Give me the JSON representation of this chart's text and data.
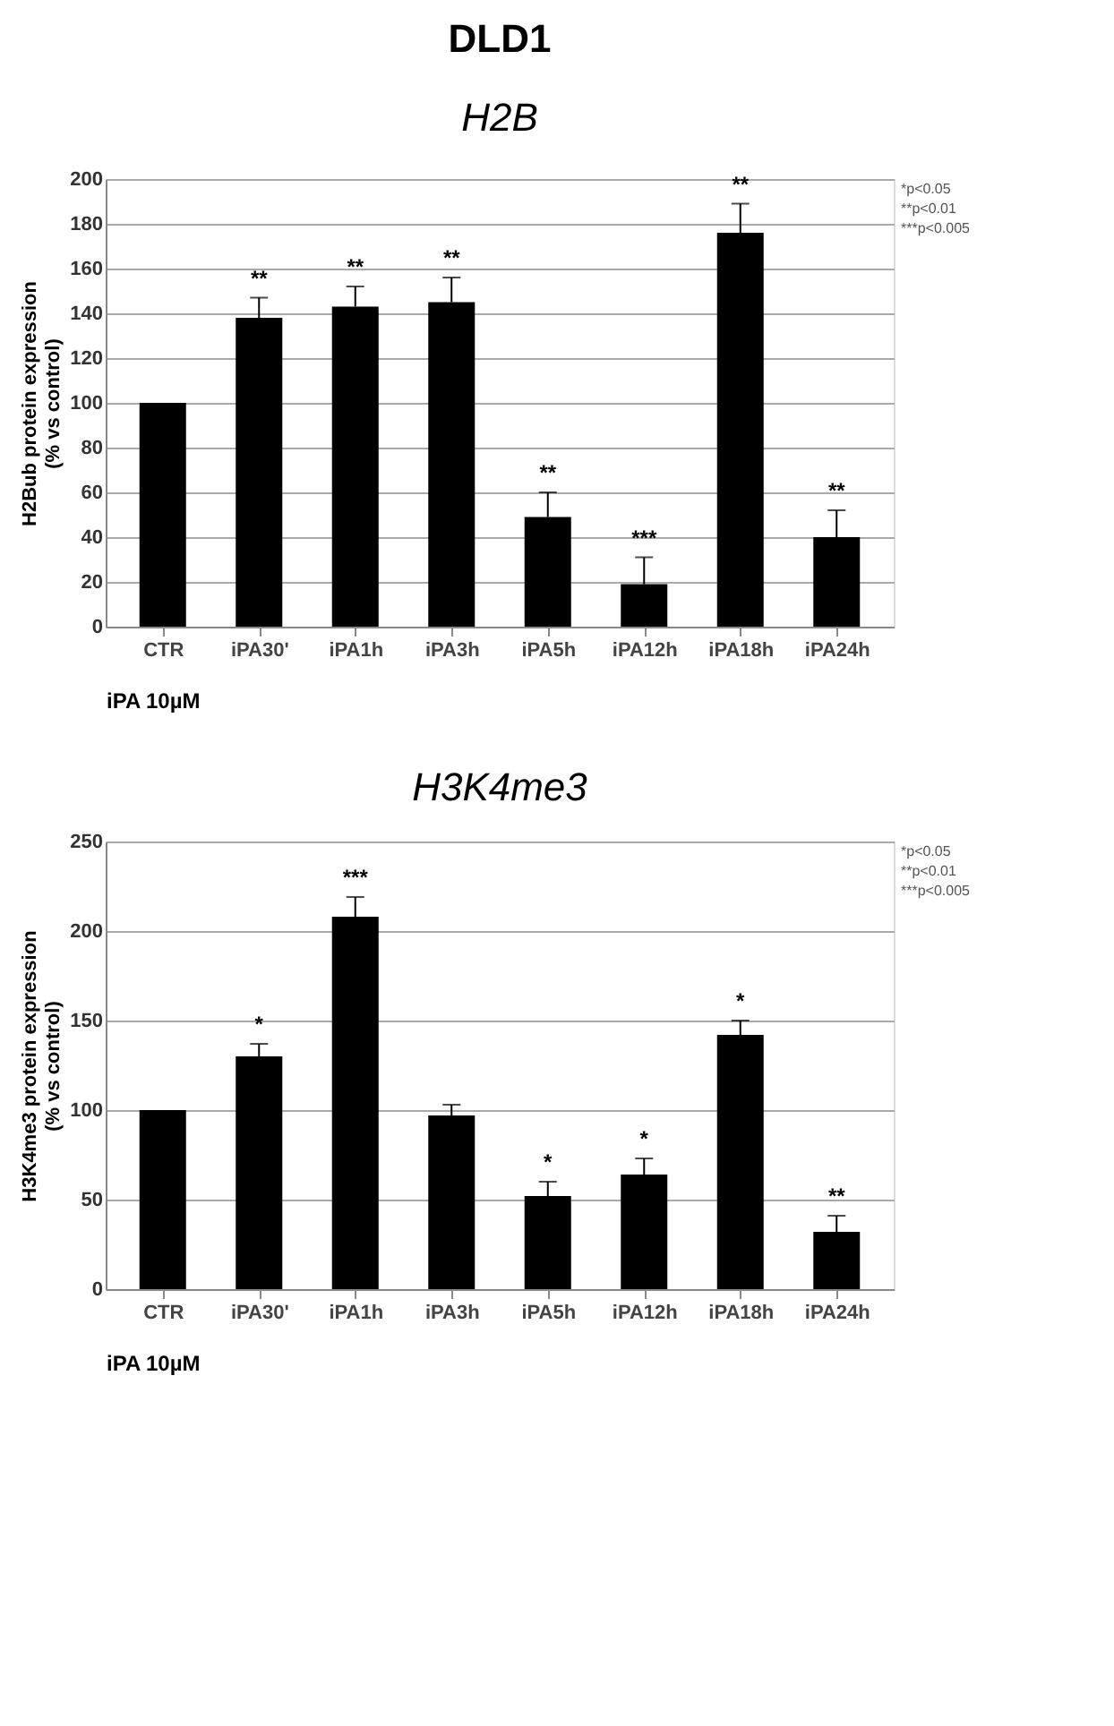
{
  "chart_data": [
    {
      "type": "bar",
      "title": "DLD1",
      "subtitle": "H2B",
      "xlabel": "iPA 10µM",
      "ylabel": "H2Bub protein expression\n(% vs control)",
      "categories": [
        "CTR",
        "iPA30'",
        "iPA1h",
        "iPA3h",
        "iPA5h",
        "iPA12h",
        "iPA18h",
        "iPA24h"
      ],
      "series": [
        {
          "color": "#000000",
          "values": [
            100,
            138,
            143,
            145,
            49,
            19,
            176,
            40
          ],
          "errors": [
            null,
            [
              138,
              147
            ],
            [
              143,
              152
            ],
            [
              145,
              156
            ],
            [
              49,
              60
            ],
            [
              19,
              31
            ],
            [
              176,
              189
            ],
            [
              40,
              52
            ]
          ],
          "value_labels": [
            null,
            "**",
            "**",
            "**",
            "**",
            "***",
            "**",
            "**"
          ]
        }
      ],
      "ylim": [
        0,
        200
      ],
      "yticks": [
        0,
        20,
        40,
        60,
        80,
        100,
        120,
        140,
        160,
        180,
        200
      ],
      "grid": "y",
      "annotations": [
        "*p<0.05",
        "**p<0.01",
        "***p<0.005"
      ]
    },
    {
      "type": "bar",
      "title": "H3K4me3",
      "xlabel": "iPA 10µM",
      "ylabel": "H3K4me3 protein expression\n(% vs control)",
      "categories": [
        "CTR",
        "iPA30'",
        "iPA1h",
        "iPA3h",
        "iPA5h",
        "iPA12h",
        "iPA18h",
        "iPA24h"
      ],
      "series": [
        {
          "color": "#000000",
          "values": [
            100,
            130,
            208,
            97,
            52,
            64,
            142,
            32
          ],
          "errors": [
            null,
            [
              130,
              137
            ],
            [
              208,
              219
            ],
            [
              97,
              103
            ],
            [
              52,
              60
            ],
            [
              64,
              73
            ],
            [
              142,
              150
            ],
            [
              32,
              41
            ]
          ],
          "value_labels": [
            null,
            "*",
            "***",
            null,
            "*",
            "*",
            "*",
            "**"
          ]
        }
      ],
      "ylim": [
        0,
        250
      ],
      "yticks": [
        0,
        50,
        100,
        150,
        200,
        250
      ],
      "grid": "y",
      "annotations": [
        "*p<0.05",
        "**p<0.01",
        "***p<0.005"
      ]
    }
  ]
}
